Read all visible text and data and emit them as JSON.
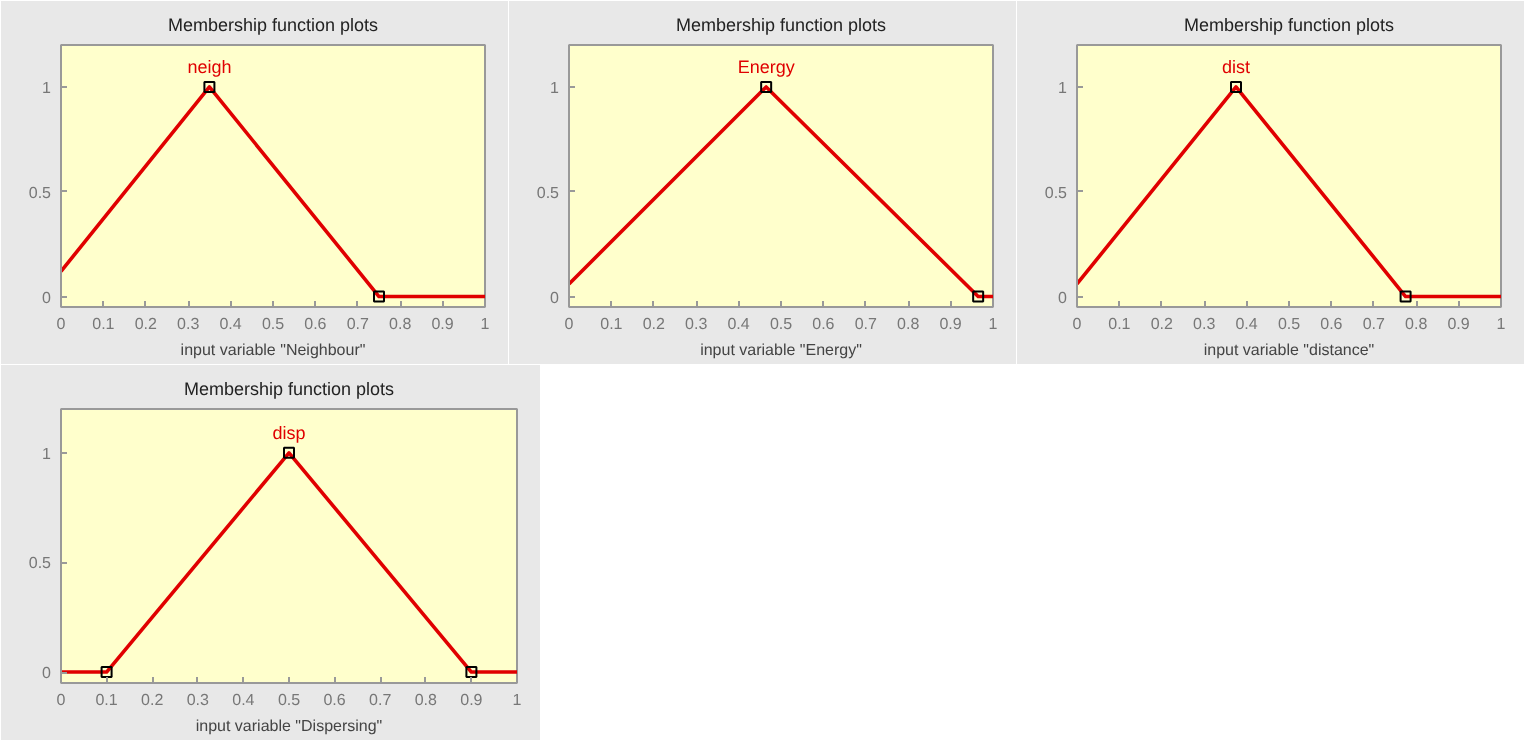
{
  "chart_data": [
    {
      "type": "line",
      "title": "Membership function plots",
      "xlabel": "input variable \"Neighbour\"",
      "xlim": [
        0,
        1
      ],
      "ylim": [
        -0.05,
        1.2
      ],
      "xticks": [
        0,
        0.1,
        0.2,
        0.3,
        0.4,
        0.5,
        0.6,
        0.7,
        0.8,
        0.9,
        1
      ],
      "yticks": [
        0,
        0.5,
        1
      ],
      "grid": false,
      "line_style": "solid",
      "series": [
        {
          "color": "#e00000",
          "x": [
            0,
            0.35,
            0.75,
            1
          ],
          "values": [
            0.12,
            1,
            0,
            0
          ]
        },
        {
          "type": "scatter",
          "marker": "square",
          "color": "#000000",
          "x": [
            0.35,
            0.75
          ],
          "values": [
            1,
            0
          ]
        }
      ],
      "annotations": [
        {
          "text": "neigh",
          "x": 0.35,
          "y": 1
        }
      ]
    },
    {
      "type": "line",
      "title": "Membership function plots",
      "xlabel": "input variable \"Energy\"",
      "xlim": [
        0,
        1
      ],
      "ylim": [
        -0.05,
        1.2
      ],
      "xticks": [
        0,
        0.1,
        0.2,
        0.3,
        0.4,
        0.5,
        0.6,
        0.7,
        0.8,
        0.9,
        1
      ],
      "yticks": [
        0,
        0.5,
        1
      ],
      "grid": false,
      "line_style": "solid",
      "series": [
        {
          "color": "#e00000",
          "x": [
            0,
            0.465,
            0.965,
            1
          ],
          "values": [
            0.06,
            1,
            0,
            0
          ]
        },
        {
          "type": "scatter",
          "marker": "square",
          "color": "#000000",
          "x": [
            0.465,
            0.965
          ],
          "values": [
            1,
            0
          ]
        }
      ],
      "annotations": [
        {
          "text": "Energy",
          "x": 0.465,
          "y": 1
        }
      ]
    },
    {
      "type": "line",
      "title": "Membership function plots",
      "xlabel": "input variable \"distance\"",
      "xlim": [
        0,
        1
      ],
      "ylim": [
        -0.05,
        1.2
      ],
      "xticks": [
        0,
        0.1,
        0.2,
        0.3,
        0.4,
        0.5,
        0.6,
        0.7,
        0.8,
        0.9,
        1
      ],
      "yticks": [
        0,
        0.5,
        1
      ],
      "grid": false,
      "line_style": "solid",
      "series": [
        {
          "color": "#e00000",
          "x": [
            0,
            0.375,
            0.775,
            1
          ],
          "values": [
            0.06,
            1,
            0,
            0
          ]
        },
        {
          "type": "scatter",
          "marker": "square",
          "color": "#000000",
          "x": [
            0.375,
            0.775
          ],
          "values": [
            1,
            0
          ]
        }
      ],
      "annotations": [
        {
          "text": "dist",
          "x": 0.375,
          "y": 1
        }
      ]
    },
    {
      "type": "line",
      "title": "Membership function plots",
      "xlabel": "input variable \"Dispersing\"",
      "xlim": [
        0,
        1
      ],
      "ylim": [
        -0.05,
        1.2
      ],
      "xticks": [
        0,
        0.1,
        0.2,
        0.3,
        0.4,
        0.5,
        0.6,
        0.7,
        0.8,
        0.9,
        1
      ],
      "yticks": [
        0,
        0.5,
        1
      ],
      "grid": false,
      "line_style": "solid",
      "series": [
        {
          "color": "#e00000",
          "x": [
            0,
            0.1,
            0.5,
            0.9,
            1
          ],
          "values": [
            0,
            0,
            1,
            0,
            0
          ]
        },
        {
          "type": "scatter",
          "marker": "square",
          "color": "#000000",
          "x": [
            0.1,
            0.5,
            0.9
          ],
          "values": [
            0,
            1,
            0
          ]
        }
      ],
      "annotations": [
        {
          "text": "disp",
          "x": 0.5,
          "y": 1
        }
      ]
    }
  ]
}
